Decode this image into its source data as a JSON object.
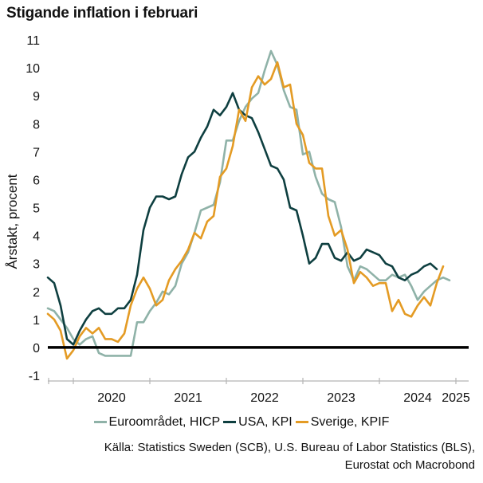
{
  "chart_data": {
    "type": "line",
    "title": "Stigande inflation i februari",
    "ylabel": "Årstakt, procent",
    "xlabel": "",
    "ylim": [
      -1,
      11
    ],
    "yticks": [
      "-1",
      "0",
      "1",
      "2",
      "3",
      "4",
      "5",
      "6",
      "7",
      "8",
      "9",
      "10",
      "11"
    ],
    "xlim": [
      "2019-09",
      "2025-03"
    ],
    "xtick_labels": [
      "2020",
      "2021",
      "2022",
      "2023",
      "2024",
      "2025"
    ],
    "zero_line": true,
    "grid": false,
    "legend_position": "bottom",
    "series": [
      {
        "name": "Euroområdet, HICP",
        "color": "#8fb2a8",
        "start": "2019-09",
        "values": [
          1.4,
          1.3,
          1.0,
          0.7,
          0.3,
          0.1,
          0.3,
          0.4,
          -0.2,
          -0.3,
          -0.3,
          -0.3,
          -0.3,
          -0.3,
          0.9,
          0.9,
          1.3,
          1.6,
          2.0,
          1.9,
          2.2,
          3.0,
          3.4,
          4.1,
          4.9,
          5.0,
          5.1,
          5.9,
          7.4,
          7.4,
          8.1,
          8.6,
          8.9,
          9.1,
          9.9,
          10.6,
          10.1,
          9.2,
          8.6,
          8.5,
          6.9,
          7.0,
          6.1,
          5.5,
          5.3,
          5.2,
          4.3,
          2.9,
          2.4,
          2.9,
          2.8,
          2.6,
          2.4,
          2.4,
          2.6,
          2.5,
          2.6,
          2.2,
          1.7,
          2.0,
          2.2,
          2.4,
          2.5,
          2.4
        ]
      },
      {
        "name": "USA, KPI",
        "color": "#0e3f40",
        "start": "2019-09",
        "values": [
          2.5,
          2.3,
          1.5,
          0.3,
          0.1,
          0.6,
          1.0,
          1.3,
          1.4,
          1.2,
          1.2,
          1.4,
          1.4,
          1.7,
          2.6,
          4.2,
          5.0,
          5.4,
          5.4,
          5.3,
          5.4,
          6.2,
          6.8,
          7.0,
          7.5,
          7.9,
          8.5,
          8.3,
          8.6,
          9.1,
          8.5,
          8.3,
          8.2,
          7.7,
          7.1,
          6.5,
          6.4,
          6.0,
          5.0,
          4.9,
          4.0,
          3.0,
          3.2,
          3.7,
          3.7,
          3.2,
          3.1,
          3.4,
          3.1,
          3.2,
          3.5,
          3.4,
          3.3,
          3.0,
          2.9,
          2.5,
          2.4,
          2.6,
          2.7,
          2.9,
          3.0,
          2.8
        ]
      },
      {
        "name": "Sverige, KPIF",
        "color": "#e49b24",
        "start": "2019-09",
        "values": [
          1.2,
          1.0,
          0.6,
          -0.4,
          -0.1,
          0.4,
          0.7,
          0.5,
          0.7,
          0.3,
          0.3,
          0.2,
          0.5,
          1.5,
          2.1,
          2.5,
          2.1,
          1.5,
          1.7,
          2.4,
          2.8,
          3.1,
          3.5,
          4.1,
          3.9,
          4.5,
          4.7,
          6.1,
          6.4,
          7.2,
          8.5,
          8.1,
          9.3,
          9.7,
          9.4,
          9.6,
          10.2,
          9.3,
          9.4,
          8.0,
          7.6,
          6.6,
          6.4,
          6.4,
          4.7,
          4.0,
          4.2,
          3.5,
          2.3,
          2.7,
          2.5,
          2.2,
          2.3,
          2.3,
          1.3,
          1.7,
          1.2,
          1.1,
          1.5,
          1.8,
          1.5,
          2.3,
          2.9
        ]
      }
    ]
  },
  "source": {
    "line1": "Källa: Statistics Sweden (SCB), U.S. Bureau of Labor Statistics (BLS),",
    "line2": "Eurostat och Macrobond"
  }
}
